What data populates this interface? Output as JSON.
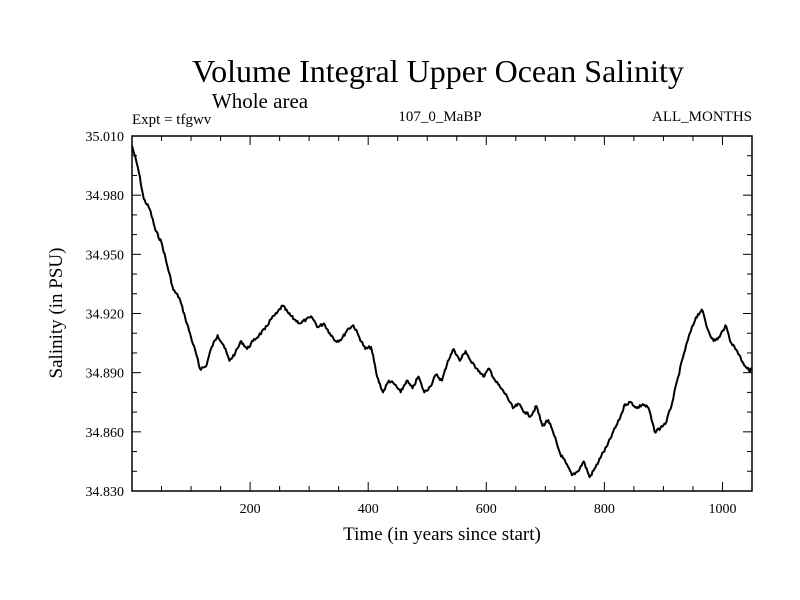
{
  "chart_data": {
    "type": "line",
    "title": "Volume Integral Upper Ocean Salinity",
    "subtitle": "Whole area",
    "experiment": "Expt = tfgwv",
    "run_label": "107_0_MaBP",
    "period_label": "ALL_MONTHS",
    "xlabel": "Time (in years since start)",
    "ylabel": "Salinity (in PSU)",
    "xlim": [
      0,
      1050
    ],
    "ylim": [
      34.83,
      35.01
    ],
    "xticks": [
      200,
      400,
      600,
      800,
      1000
    ],
    "yticks": [
      "34.830",
      "34.860",
      "34.890",
      "34.920",
      "34.950",
      "34.980",
      "35.010"
    ],
    "grid": false,
    "series": [
      {
        "name": "Salinity",
        "color": "#000000",
        "x": [
          0,
          10,
          20,
          30,
          40,
          50,
          60,
          70,
          80,
          90,
          100,
          110,
          115,
          125,
          135,
          145,
          155,
          165,
          175,
          185,
          195,
          205,
          215,
          225,
          235,
          245,
          255,
          265,
          275,
          285,
          295,
          305,
          315,
          325,
          335,
          345,
          355,
          365,
          375,
          385,
          395,
          405,
          415,
          425,
          435,
          445,
          455,
          465,
          475,
          485,
          495,
          505,
          515,
          525,
          535,
          545,
          555,
          565,
          575,
          585,
          595,
          605,
          615,
          625,
          635,
          645,
          655,
          665,
          675,
          685,
          695,
          705,
          715,
          725,
          735,
          745,
          755,
          765,
          775,
          785,
          795,
          805,
          815,
          825,
          835,
          845,
          855,
          865,
          875,
          885,
          895,
          905,
          915,
          925,
          935,
          945,
          955,
          965,
          975,
          985,
          995,
          1005,
          1015,
          1025,
          1035,
          1045,
          1050
        ],
        "y": [
          35.005,
          34.994,
          34.978,
          34.973,
          34.962,
          34.956,
          34.944,
          34.932,
          34.928,
          34.918,
          34.908,
          34.898,
          34.892,
          34.893,
          34.903,
          34.909,
          34.904,
          34.896,
          34.9,
          34.906,
          34.902,
          34.906,
          34.909,
          34.912,
          34.917,
          34.92,
          34.924,
          34.92,
          34.917,
          34.915,
          34.917,
          34.918,
          34.913,
          34.915,
          34.91,
          34.906,
          34.907,
          34.912,
          34.914,
          34.908,
          34.902,
          34.903,
          34.888,
          34.88,
          34.886,
          34.884,
          34.88,
          34.886,
          34.882,
          34.888,
          34.88,
          34.883,
          34.889,
          34.886,
          34.896,
          34.902,
          34.896,
          34.901,
          34.895,
          34.892,
          34.888,
          34.892,
          34.886,
          34.882,
          34.878,
          34.872,
          34.874,
          34.87,
          34.868,
          34.873,
          34.863,
          34.866,
          34.858,
          34.849,
          34.844,
          34.838,
          34.84,
          34.845,
          34.837,
          34.842,
          34.848,
          34.853,
          34.86,
          34.866,
          34.874,
          34.875,
          34.872,
          34.874,
          34.872,
          34.86,
          34.862,
          34.865,
          34.875,
          34.888,
          34.9,
          34.91,
          34.918,
          34.922,
          34.912,
          34.906,
          34.908,
          34.914,
          34.905,
          34.901,
          34.895,
          34.891,
          34.892
        ]
      }
    ]
  }
}
